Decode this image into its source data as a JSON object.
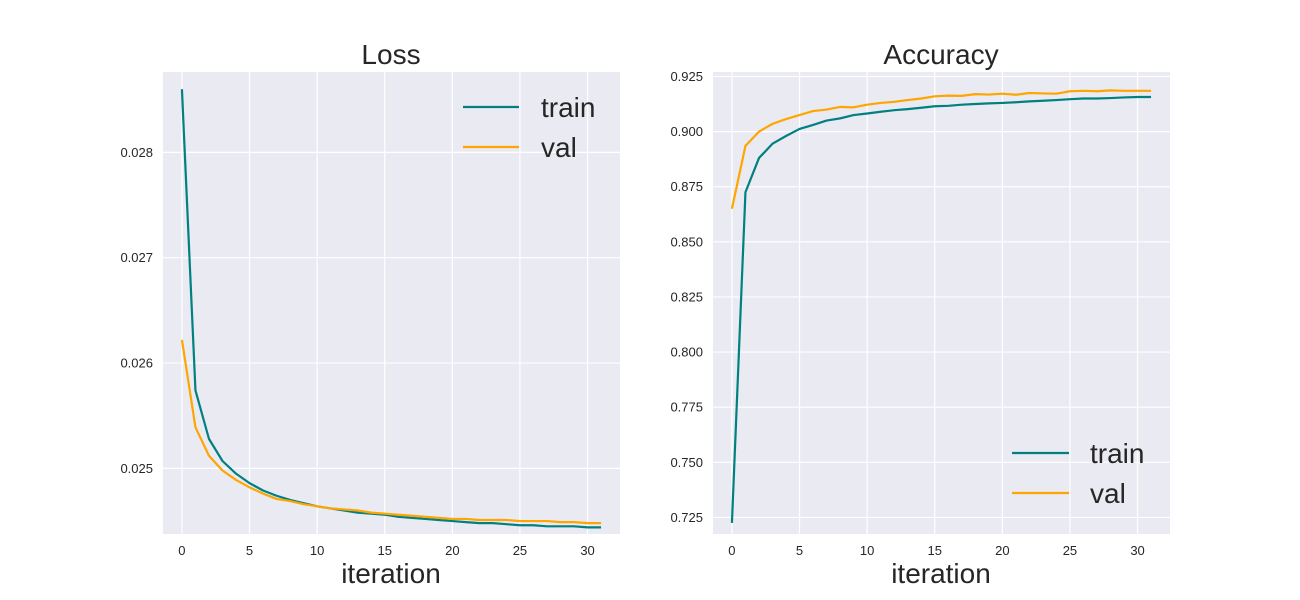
{
  "colors": {
    "train": "#008080",
    "val": "#FFA500",
    "panel_background": "#EAEAF2",
    "grid": "#FFFFFF"
  },
  "chart_data": [
    {
      "type": "line",
      "title": "Loss",
      "xlabel": "iteration",
      "ylabel": "",
      "xlim": [
        -1.4,
        32.4
      ],
      "ylim": [
        0.024377,
        0.028763
      ],
      "xticks": [
        0,
        5,
        10,
        15,
        20,
        25,
        30
      ],
      "yticks": [
        0.025,
        0.026,
        0.027,
        0.028
      ],
      "ytick_labels": [
        "0.025",
        "0.026",
        "0.027",
        "0.028"
      ],
      "grid": true,
      "legend": {
        "position": "top-right",
        "entries": [
          "train",
          "val"
        ]
      },
      "x": [
        0,
        1,
        2,
        3,
        4,
        5,
        6,
        7,
        8,
        9,
        10,
        11,
        12,
        13,
        14,
        15,
        16,
        17,
        18,
        19,
        20,
        21,
        22,
        23,
        24,
        25,
        26,
        27,
        28,
        29,
        30,
        31
      ],
      "series": [
        {
          "name": "train",
          "color": "#008080",
          "values": [
            0.0286,
            0.02574,
            0.02528,
            0.02507,
            0.02495,
            0.02486,
            0.02479,
            0.02474,
            0.0247,
            0.02467,
            0.02464,
            0.02462,
            0.0246,
            0.02458,
            0.02457,
            0.02456,
            0.02454,
            0.02453,
            0.02452,
            0.02451,
            0.0245,
            0.02449,
            0.02448,
            0.02448,
            0.02447,
            0.02446,
            0.02446,
            0.02445,
            0.02445,
            0.02445,
            0.02444,
            0.02444
          ]
        },
        {
          "name": "val",
          "color": "#FFA500",
          "values": [
            0.02622,
            0.02539,
            0.02512,
            0.02498,
            0.02489,
            0.02482,
            0.02476,
            0.02471,
            0.02469,
            0.02466,
            0.02464,
            0.02462,
            0.02461,
            0.0246,
            0.02458,
            0.02457,
            0.02456,
            0.02455,
            0.02454,
            0.02453,
            0.02452,
            0.02452,
            0.02451,
            0.02451,
            0.02451,
            0.0245,
            0.0245,
            0.0245,
            0.02449,
            0.02449,
            0.02448,
            0.02448
          ]
        }
      ]
    },
    {
      "type": "line",
      "title": "Accuracy",
      "xlabel": "iteration",
      "ylabel": "",
      "xlim": [
        -1.4,
        32.4
      ],
      "ylim": [
        0.71748,
        0.92703
      ],
      "xticks": [
        0,
        5,
        10,
        15,
        20,
        25,
        30
      ],
      "yticks": [
        0.725,
        0.75,
        0.775,
        0.8,
        0.825,
        0.85,
        0.875,
        0.9,
        0.925
      ],
      "ytick_labels": [
        "0.725",
        "0.750",
        "0.775",
        "0.800",
        "0.825",
        "0.850",
        "0.875",
        "0.900",
        "0.925"
      ],
      "grid": true,
      "legend": {
        "position": "bottom-right",
        "entries": [
          "train",
          "val"
        ]
      },
      "x": [
        0,
        1,
        2,
        3,
        4,
        5,
        6,
        7,
        8,
        9,
        10,
        11,
        12,
        13,
        14,
        15,
        16,
        17,
        18,
        19,
        20,
        21,
        22,
        23,
        24,
        25,
        26,
        27,
        28,
        29,
        30,
        31
      ],
      "series": [
        {
          "name": "train",
          "color": "#008080",
          "values": [
            0.7225,
            0.8725,
            0.888,
            0.8945,
            0.898,
            0.9012,
            0.903,
            0.905,
            0.906,
            0.9075,
            0.9082,
            0.909,
            0.9097,
            0.9102,
            0.9108,
            0.9115,
            0.9117,
            0.9122,
            0.9125,
            0.9128,
            0.913,
            0.9133,
            0.9137,
            0.914,
            0.9143,
            0.9147,
            0.915,
            0.915,
            0.9152,
            0.9155,
            0.9157,
            0.9157
          ]
        },
        {
          "name": "val",
          "color": "#FFA500",
          "values": [
            0.865,
            0.8935,
            0.9,
            0.9035,
            0.9057,
            0.9075,
            0.9093,
            0.91,
            0.9112,
            0.911,
            0.9122,
            0.913,
            0.9135,
            0.9143,
            0.915,
            0.916,
            0.9163,
            0.9162,
            0.917,
            0.9168,
            0.9172,
            0.9167,
            0.9175,
            0.9173,
            0.9172,
            0.9183,
            0.9185,
            0.9183,
            0.9187,
            0.9185,
            0.9185,
            0.9185
          ]
        }
      ]
    }
  ]
}
